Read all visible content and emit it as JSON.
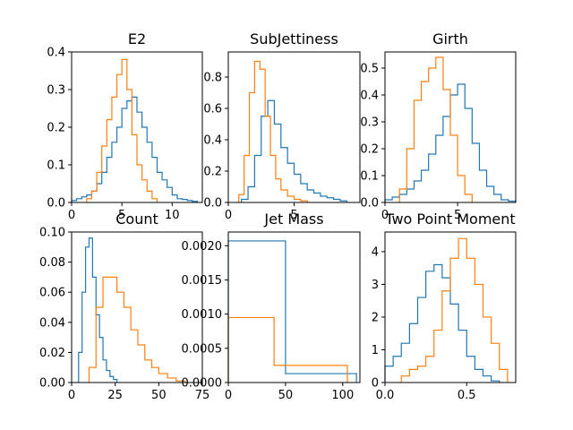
{
  "colors": {
    "series_a": "#1f77b4",
    "series_b": "#ff7f0e"
  },
  "chart_data": [
    {
      "type": "histogram",
      "title": "E2",
      "xlim": [
        0,
        13
      ],
      "ylim": [
        0,
        0.4
      ],
      "xticks": [
        0,
        5,
        10
      ],
      "xtick_labels": [
        "0",
        "5",
        "10"
      ],
      "yticks": [
        0,
        0.1,
        0.2,
        0.3,
        0.4
      ],
      "ytick_labels": [
        "0.0",
        "0.1",
        "0.2",
        "0.3",
        "0.4"
      ],
      "series": [
        {
          "color": "#1f77b4",
          "x": [
            0,
            0.5,
            1.0,
            1.5,
            2.0,
            2.5,
            3.0,
            3.5,
            4.0,
            4.5,
            5.0,
            5.5,
            6.0,
            6.5,
            7.0,
            7.5,
            8.0,
            8.5,
            9.0,
            9.5,
            10.0,
            10.5,
            11.0,
            11.5,
            12.0,
            12.5
          ],
          "y": [
            0.005,
            0.01,
            0.015,
            0.02,
            0.03,
            0.05,
            0.08,
            0.12,
            0.16,
            0.2,
            0.25,
            0.27,
            0.28,
            0.24,
            0.2,
            0.16,
            0.12,
            0.08,
            0.06,
            0.04,
            0.02,
            0.01,
            0.008,
            0.005,
            0.003
          ]
        },
        {
          "color": "#ff7f0e",
          "x": [
            1.5,
            2.0,
            2.5,
            3.0,
            3.5,
            4.0,
            4.5,
            5.0,
            5.5,
            6.0,
            6.5,
            7.0,
            7.5,
            8.0,
            8.5
          ],
          "y": [
            0.01,
            0.03,
            0.08,
            0.15,
            0.22,
            0.28,
            0.34,
            0.38,
            0.3,
            0.18,
            0.1,
            0.06,
            0.03,
            0.01
          ]
        }
      ]
    },
    {
      "type": "histogram",
      "title": "SubJettiness",
      "xlim": [
        0,
        10
      ],
      "ylim": [
        0,
        0.96
      ],
      "xticks": [
        0,
        5
      ],
      "xtick_labels": [
        "0",
        "5"
      ],
      "yticks": [
        0,
        0.2,
        0.4,
        0.6,
        0.8
      ],
      "ytick_labels": [
        "0.0",
        "0.2",
        "0.4",
        "0.6",
        "0.8"
      ],
      "series": [
        {
          "color": "#1f77b4",
          "x": [
            1.0,
            1.5,
            2.0,
            2.5,
            3.0,
            3.5,
            4.0,
            4.5,
            5.0,
            5.5,
            6.0,
            6.5,
            7.0,
            7.5,
            8.0,
            8.5,
            9.0
          ],
          "y": [
            0.02,
            0.1,
            0.3,
            0.55,
            0.65,
            0.5,
            0.35,
            0.25,
            0.18,
            0.12,
            0.08,
            0.06,
            0.04,
            0.03,
            0.02,
            0.01
          ]
        },
        {
          "color": "#ff7f0e",
          "x": [
            0.8,
            1.2,
            1.6,
            2.0,
            2.4,
            2.8,
            3.2,
            3.6,
            4.0,
            4.5,
            5.0,
            5.5,
            6.0
          ],
          "y": [
            0.05,
            0.3,
            0.7,
            0.9,
            0.85,
            0.55,
            0.3,
            0.15,
            0.08,
            0.04,
            0.02,
            0.01
          ]
        }
      ]
    },
    {
      "type": "histogram",
      "title": "Girth",
      "xlim": [
        0,
        9
      ],
      "ylim": [
        0,
        0.56
      ],
      "xticks": [
        0,
        5
      ],
      "xtick_labels": [
        "0",
        "5"
      ],
      "yticks": [
        0,
        0.1,
        0.2,
        0.3,
        0.4,
        0.5
      ],
      "ytick_labels": [
        "0.0",
        "0.1",
        "0.2",
        "0.3",
        "0.4",
        "0.5"
      ],
      "series": [
        {
          "color": "#1f77b4",
          "x": [
            0,
            0.5,
            1.0,
            1.5,
            2.0,
            2.5,
            3.0,
            3.5,
            4.0,
            4.5,
            5.0,
            5.5,
            6.0,
            6.5,
            7.0,
            7.5,
            8.0,
            8.5,
            9.0
          ],
          "y": [
            0.01,
            0.02,
            0.03,
            0.05,
            0.08,
            0.12,
            0.18,
            0.25,
            0.32,
            0.4,
            0.44,
            0.35,
            0.22,
            0.12,
            0.06,
            0.03,
            0.01,
            0.005
          ]
        },
        {
          "color": "#ff7f0e",
          "x": [
            1.0,
            1.5,
            2.0,
            2.5,
            3.0,
            3.5,
            4.0,
            4.5,
            5.0,
            5.5,
            6.0
          ],
          "y": [
            0.05,
            0.2,
            0.38,
            0.45,
            0.5,
            0.54,
            0.42,
            0.25,
            0.1,
            0.03
          ]
        }
      ]
    },
    {
      "type": "histogram",
      "title": "Count",
      "xlim": [
        0,
        75
      ],
      "ylim": [
        0,
        0.1
      ],
      "xticks": [
        0,
        25,
        50,
        75
      ],
      "xtick_labels": [
        "0",
        "25",
        "50",
        "75"
      ],
      "yticks": [
        0,
        0.02,
        0.04,
        0.06,
        0.08,
        0.1
      ],
      "ytick_labels": [
        "0.00",
        "0.02",
        "0.04",
        "0.06",
        "0.08",
        "0.10"
      ],
      "series": [
        {
          "color": "#1f77b4",
          "x": [
            4,
            6,
            8,
            10,
            12,
            14,
            16,
            18,
            20,
            22,
            24,
            26
          ],
          "y": [
            0.02,
            0.06,
            0.09,
            0.096,
            0.07,
            0.045,
            0.03,
            0.015,
            0.008,
            0.004,
            0.002
          ]
        },
        {
          "color": "#ff7f0e",
          "x": [
            10,
            14,
            18,
            22,
            26,
            30,
            34,
            38,
            42,
            46,
            50,
            55,
            60,
            65
          ],
          "y": [
            0.01,
            0.05,
            0.07,
            0.07,
            0.06,
            0.05,
            0.035,
            0.025,
            0.015,
            0.01,
            0.006,
            0.003,
            0.001
          ]
        }
      ]
    },
    {
      "type": "histogram",
      "title": "Jet Mass",
      "xlim": [
        0,
        115
      ],
      "ylim": [
        0,
        0.0022
      ],
      "xticks": [
        0,
        50,
        100
      ],
      "xtick_labels": [
        "0",
        "50",
        "100"
      ],
      "yticks": [
        0,
        0.0005,
        0.001,
        0.0015,
        0.002
      ],
      "ytick_labels": [
        "0.0000",
        "0.0005",
        "0.0010",
        "0.0015",
        "0.0020"
      ],
      "series": [
        {
          "color": "#1f77b4",
          "x": [
            0,
            50,
            112
          ],
          "y": [
            0.00207,
            0.00013
          ]
        },
        {
          "color": "#ff7f0e",
          "x": [
            0,
            40,
            104
          ],
          "y": [
            0.00095,
            0.00025
          ]
        }
      ]
    },
    {
      "type": "histogram",
      "title": "Two Point Moment",
      "xlim": [
        0,
        0.8
      ],
      "ylim": [
        0,
        4.6
      ],
      "xticks": [
        0,
        0.5
      ],
      "xtick_labels": [
        "0.0",
        "0.5"
      ],
      "yticks": [
        0,
        1,
        2,
        3,
        4
      ],
      "ytick_labels": [
        "0",
        "1",
        "2",
        "3",
        "4"
      ],
      "series": [
        {
          "color": "#1f77b4",
          "x": [
            0,
            0.05,
            0.1,
            0.15,
            0.2,
            0.25,
            0.3,
            0.35,
            0.4,
            0.45,
            0.5,
            0.55,
            0.6,
            0.65,
            0.7
          ],
          "y": [
            0.5,
            0.8,
            1.2,
            1.8,
            2.6,
            3.4,
            3.6,
            3.2,
            2.4,
            1.6,
            0.8,
            0.4,
            0.2,
            0.05
          ]
        },
        {
          "color": "#ff7f0e",
          "x": [
            0.1,
            0.15,
            0.2,
            0.25,
            0.3,
            0.35,
            0.4,
            0.45,
            0.5,
            0.55,
            0.6,
            0.65,
            0.7,
            0.75
          ],
          "y": [
            0.2,
            0.4,
            0.5,
            0.8,
            1.6,
            2.8,
            3.8,
            4.4,
            3.8,
            3.0,
            2.0,
            1.2,
            0.4
          ]
        }
      ]
    }
  ]
}
